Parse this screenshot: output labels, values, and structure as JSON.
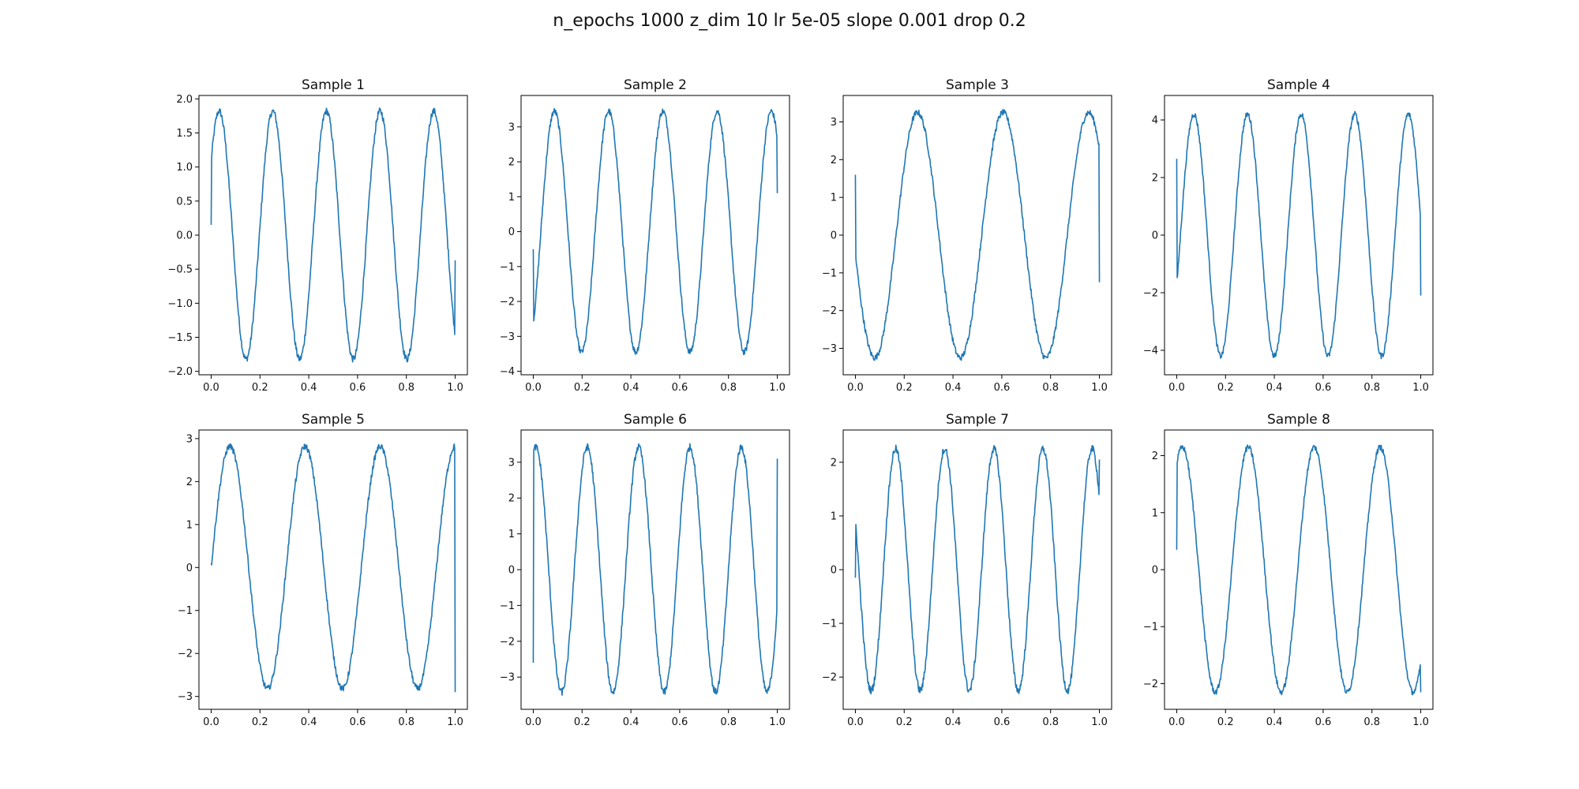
{
  "figure": {
    "title": "n_epochs 1000 z_dim 10 lr 5e-05 slope 0.001 drop 0.2",
    "line_color": "#1f77b4",
    "axis_color": "#000000"
  },
  "chart_data": [
    {
      "type": "line",
      "title": "Sample 1",
      "xlim": [
        -0.05,
        1.05
      ],
      "ylim": [
        -2.05,
        2.05
      ],
      "xticks": [
        0.0,
        0.2,
        0.4,
        0.6,
        0.8,
        1.0
      ],
      "xtick_labels": [
        "0.0",
        "0.2",
        "0.4",
        "0.6",
        "0.8",
        "1.0"
      ],
      "yticks": [
        -2.0,
        -1.5,
        -1.0,
        -0.5,
        0.0,
        0.5,
        1.0,
        1.5,
        2.0
      ],
      "ytick_labels": [
        "−2.0",
        "−1.5",
        "−1.0",
        "−0.5",
        "0.0",
        "0.5",
        "1.0",
        "1.5",
        "2.0"
      ],
      "signal": {
        "amplitude": 1.82,
        "frequency": 4.55,
        "phase": 0.1,
        "noise": 0.05
      },
      "endpoints": [
        0.15,
        -0.37
      ]
    },
    {
      "type": "line",
      "title": "Sample 2",
      "xlim": [
        -0.05,
        1.05
      ],
      "ylim": [
        -4.1,
        3.9
      ],
      "xticks": [
        0.0,
        0.2,
        0.4,
        0.6,
        0.8,
        1.0
      ],
      "xtick_labels": [
        "0.0",
        "0.2",
        "0.4",
        "0.6",
        "0.8",
        "1.0"
      ],
      "yticks": [
        -4,
        -3,
        -2,
        -1,
        0,
        1,
        2,
        3
      ],
      "ytick_labels": [
        "−4",
        "−3",
        "−2",
        "−1",
        "0",
        "1",
        "2",
        "3"
      ],
      "signal": {
        "amplitude": 3.45,
        "frequency": 4.5,
        "phase": -0.14,
        "noise": 0.09
      },
      "endpoints": [
        -0.5,
        1.1
      ]
    },
    {
      "type": "line",
      "title": "Sample 3",
      "xlim": [
        -0.05,
        1.05
      ],
      "ylim": [
        -3.7,
        3.7
      ],
      "xticks": [
        0.0,
        0.2,
        0.4,
        0.6,
        0.8,
        1.0
      ],
      "xtick_labels": [
        "0.0",
        "0.2",
        "0.4",
        "0.6",
        "0.8",
        "1.0"
      ],
      "yticks": [
        -3,
        -2,
        -1,
        0,
        1,
        2,
        3
      ],
      "ytick_labels": [
        "−3",
        "−2",
        "−1",
        "0",
        "1",
        "2",
        "3"
      ],
      "signal": {
        "amplitude": 3.25,
        "frequency": 2.85,
        "phase": 0.525,
        "noise": 0.08
      },
      "endpoints": [
        1.6,
        -1.25
      ]
    },
    {
      "type": "line",
      "title": "Sample 4",
      "xlim": [
        -0.05,
        1.05
      ],
      "ylim": [
        -4.85,
        4.85
      ],
      "xticks": [
        0.0,
        0.2,
        0.4,
        0.6,
        0.8,
        1.0
      ],
      "xtick_labels": [
        "0.0",
        "0.2",
        "0.4",
        "0.6",
        "0.8",
        "1.0"
      ],
      "yticks": [
        -4,
        -2,
        0,
        2,
        4
      ],
      "ytick_labels": [
        "−4",
        "−2",
        "0",
        "2",
        "4"
      ],
      "signal": {
        "amplitude": 4.2,
        "frequency": 4.55,
        "phase": 0.93,
        "noise": 0.1
      },
      "endpoints": [
        2.65,
        -2.1
      ]
    },
    {
      "type": "line",
      "title": "Sample 5",
      "xlim": [
        -0.05,
        1.05
      ],
      "ylim": [
        -3.3,
        3.2
      ],
      "xticks": [
        0.0,
        0.2,
        0.4,
        0.6,
        0.8,
        1.0
      ],
      "xtick_labels": [
        "0.0",
        "0.2",
        "0.4",
        "0.6",
        "0.8",
        "1.0"
      ],
      "yticks": [
        -3,
        -2,
        -1,
        0,
        1,
        2,
        3
      ],
      "ytick_labels": [
        "−3",
        "−2",
        "−1",
        "0",
        "1",
        "2",
        "3"
      ],
      "signal": {
        "amplitude": 2.82,
        "frequency": 3.25,
        "phase": 0.0,
        "noise": 0.07
      },
      "endpoints": [
        0.1,
        -2.9
      ]
    },
    {
      "type": "line",
      "title": "Sample 6",
      "xlim": [
        -0.05,
        1.05
      ],
      "ylim": [
        -3.9,
        3.9
      ],
      "xticks": [
        0.0,
        0.2,
        0.4,
        0.6,
        0.8,
        1.0
      ],
      "xtick_labels": [
        "0.0",
        "0.2",
        "0.4",
        "0.6",
        "0.8",
        "1.0"
      ],
      "yticks": [
        -3,
        -2,
        -1,
        0,
        1,
        2,
        3
      ],
      "ytick_labels": [
        "−3",
        "−2",
        "−1",
        "0",
        "1",
        "2",
        "3"
      ],
      "signal": {
        "amplitude": 3.42,
        "frequency": 4.75,
        "phase": -0.8,
        "noise": 0.1
      },
      "endpoints": [
        -2.6,
        3.1
      ]
    },
    {
      "type": "line",
      "title": "Sample 7",
      "xlim": [
        -0.05,
        1.05
      ],
      "ylim": [
        -2.6,
        2.6
      ],
      "xticks": [
        0.0,
        0.2,
        0.4,
        0.6,
        0.8,
        1.0
      ],
      "xtick_labels": [
        "0.0",
        "0.2",
        "0.4",
        "0.6",
        "0.8",
        "1.0"
      ],
      "yticks": [
        -2,
        -1,
        0,
        1,
        2
      ],
      "ytick_labels": [
        "−2",
        "−1",
        "0",
        "1",
        "2"
      ],
      "signal": {
        "amplitude": 2.25,
        "frequency": 4.97,
        "phase": -0.57,
        "noise": 0.07
      },
      "endpoints": [
        -0.15,
        2.05
      ]
    },
    {
      "type": "line",
      "title": "Sample 8",
      "xlim": [
        -0.05,
        1.05
      ],
      "ylim": [
        -2.45,
        2.45
      ],
      "xticks": [
        0.0,
        0.2,
        0.4,
        0.6,
        0.8,
        1.0
      ],
      "xtick_labels": [
        "0.0",
        "0.2",
        "0.4",
        "0.6",
        "0.8",
        "1.0"
      ],
      "yticks": [
        -2,
        -1,
        0,
        1,
        2
      ],
      "ytick_labels": [
        "−2",
        "−1",
        "0",
        "1",
        "2"
      ],
      "signal": {
        "amplitude": 2.15,
        "frequency": 3.7,
        "phase": 0.165,
        "noise": 0.05
      },
      "endpoints": [
        0.35,
        -2.15
      ]
    }
  ]
}
